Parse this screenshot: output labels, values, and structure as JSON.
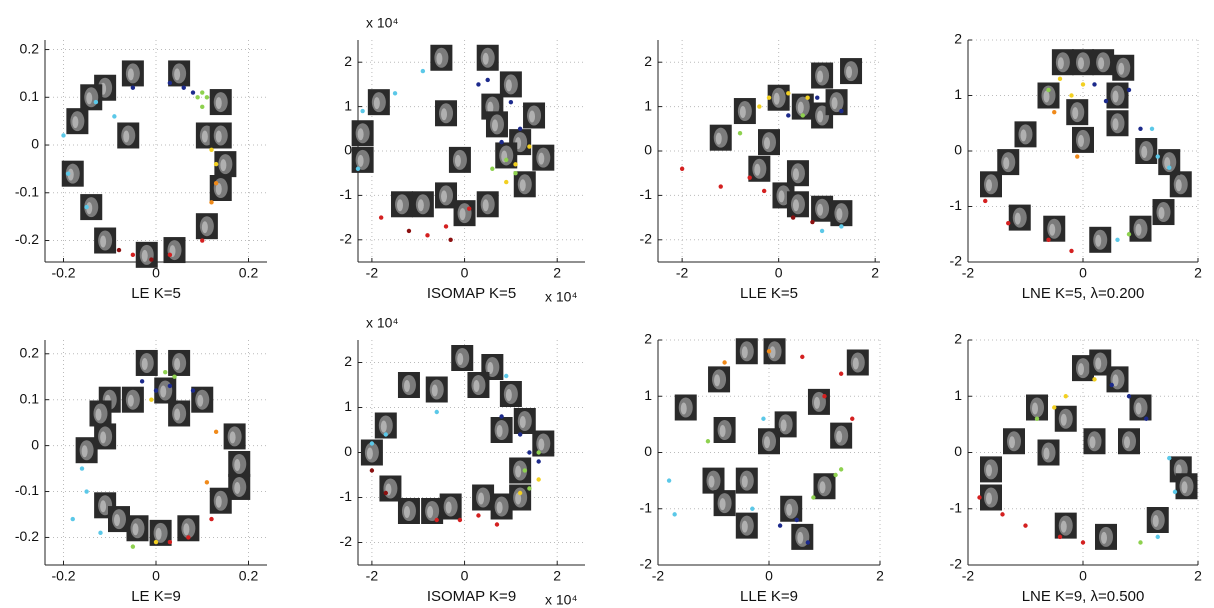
{
  "chart_data": [
    {
      "type": "scatter",
      "xlabel": "LE  K=5",
      "xlim": [
        -0.24,
        0.24
      ],
      "ylim": [
        -0.245,
        0.22
      ],
      "xticks": [
        -0.2,
        0,
        0.2
      ],
      "yticks": [
        -0.2,
        -0.1,
        0,
        0.1,
        0.2
      ],
      "grid": true,
      "series": [
        {
          "color": "#1c2a8c",
          "x": [
            -0.05,
            0.03,
            0.06,
            0.08
          ],
          "y": [
            0.12,
            0.13,
            0.12,
            0.11
          ]
        },
        {
          "color": "#8ed14f",
          "x": [
            0.09,
            0.1,
            0.11,
            0.1
          ],
          "y": [
            0.1,
            0.11,
            0.1,
            0.08
          ]
        },
        {
          "color": "#5bc8e8",
          "x": [
            -0.2,
            -0.13,
            -0.09,
            -0.19,
            -0.15
          ],
          "y": [
            0.02,
            0.09,
            0.06,
            -0.06,
            -0.13
          ]
        },
        {
          "color": "#f2d022",
          "x": [
            0.12,
            0.13
          ],
          "y": [
            -0.01,
            -0.04
          ]
        },
        {
          "color": "#f08a1a",
          "x": [
            0.13,
            0.12
          ],
          "y": [
            -0.08,
            -0.12
          ]
        },
        {
          "color": "#d42020",
          "x": [
            0.1,
            0.03,
            -0.05
          ],
          "y": [
            -0.2,
            -0.23,
            -0.23
          ]
        },
        {
          "color": "#8b1010",
          "x": [
            -0.08,
            -0.01
          ],
          "y": [
            -0.22,
            -0.24
          ]
        }
      ],
      "thumbnails": {
        "x": [
          -0.05,
          0.05,
          -0.11,
          -0.14,
          0.14,
          -0.17,
          -0.06,
          0.11,
          0.14,
          0.15,
          0.14,
          -0.18,
          -0.14,
          -0.11,
          -0.02,
          0.04,
          0.11
        ],
        "y": [
          0.15,
          0.15,
          0.12,
          0.1,
          0.09,
          0.05,
          0.02,
          0.02,
          0.02,
          -0.04,
          -0.09,
          -0.06,
          -0.13,
          -0.2,
          -0.23,
          -0.22,
          -0.17
        ]
      }
    },
    {
      "type": "scatter",
      "xlabel": "ISOMAP  K=5",
      "x_multiplier": "x 10⁴",
      "y_multiplier": "x 10⁴",
      "xlim": [
        -23000,
        26000
      ],
      "ylim": [
        -25000,
        25000
      ],
      "xticks": [
        {
          "value": -20000,
          "label": "-2"
        },
        {
          "value": 0,
          "label": "0"
        },
        {
          "value": 20000,
          "label": "2"
        }
      ],
      "yticks": [
        {
          "value": -20000,
          "label": "-2"
        },
        {
          "value": -10000,
          "label": "-1"
        },
        {
          "value": 0,
          "label": "0"
        },
        {
          "value": 10000,
          "label": "1"
        },
        {
          "value": 20000,
          "label": "2"
        }
      ],
      "grid": true,
      "series": [
        {
          "color": "#1c2a8c",
          "x": [
            5000,
            10000,
            12000,
            8000,
            3000
          ],
          "y": [
            16000,
            11000,
            5000,
            2000,
            15000
          ]
        },
        {
          "color": "#5bc8e8",
          "x": [
            -9000,
            -15000,
            -22000,
            -23000
          ],
          "y": [
            18000,
            13000,
            9000,
            -4000
          ]
        },
        {
          "color": "#8ed14f",
          "x": [
            9000,
            11000,
            6000
          ],
          "y": [
            -2000,
            -5000,
            -4000
          ]
        },
        {
          "color": "#f2d022",
          "x": [
            11000,
            14000,
            9000
          ],
          "y": [
            -3000,
            1000,
            -7000
          ]
        },
        {
          "color": "#d42020",
          "x": [
            -18000,
            -8000,
            -4000,
            1000
          ],
          "y": [
            -15000,
            -19000,
            -17000,
            -13000
          ]
        },
        {
          "color": "#8b1010",
          "x": [
            -3000,
            -12000
          ],
          "y": [
            -20000,
            -18000
          ]
        }
      ],
      "thumbnails": {
        "x": [
          -22000,
          -18500,
          -13500,
          -9000,
          -4000,
          0,
          -5000,
          5000,
          10000,
          -4000,
          6000,
          15000,
          7000,
          12000,
          9000,
          17000,
          -1000,
          13000,
          5000,
          -22000
        ],
        "y": [
          4000,
          11000,
          -12000,
          -12000,
          -10000,
          -14000,
          21000,
          21000,
          15000,
          8500,
          10000,
          8000,
          6000,
          2000,
          -1000,
          -1500,
          -2000,
          -7500,
          -12000,
          -2000
        ]
      }
    },
    {
      "type": "scatter",
      "xlabel": "LLE  K=5",
      "xlim": [
        -2.5,
        2.1
      ],
      "ylim": [
        -2.5,
        2.5
      ],
      "xticks": [
        -2,
        0,
        2
      ],
      "yticks": [
        -2,
        -1,
        0,
        1,
        2
      ],
      "grid": true,
      "series": [
        {
          "color": "#f2d022",
          "x": [
            -0.4,
            -0.2,
            0.2,
            0.6
          ],
          "y": [
            1,
            1.2,
            1.3,
            1.2
          ]
        },
        {
          "color": "#1c2a8c",
          "x": [
            0.2,
            0.8,
            1.3
          ],
          "y": [
            0.8,
            1.2,
            0.9
          ]
        },
        {
          "color": "#d42020",
          "x": [
            -2,
            -1.2,
            -0.6,
            -0.3
          ],
          "y": [
            -0.4,
            -0.8,
            -0.6,
            -0.9
          ]
        },
        {
          "color": "#8b1010",
          "x": [
            0.3,
            0.7
          ],
          "y": [
            -1.5,
            -1.6
          ]
        },
        {
          "color": "#5bc8e8",
          "x": [
            1.3,
            0.9
          ],
          "y": [
            -1.7,
            -1.8
          ]
        },
        {
          "color": "#8ed14f",
          "x": [
            -0.8,
            0.5
          ],
          "y": [
            0.4,
            0.8
          ]
        }
      ],
      "thumbnails": {
        "x": [
          -1.2,
          -0.7,
          -0.2,
          -0.4,
          0,
          0.5,
          0.9,
          1.2,
          1.5,
          0.9,
          0.4,
          0.1,
          0.4,
          0.9,
          1.3
        ],
        "y": [
          0.3,
          0.9,
          0.2,
          -0.4,
          1.2,
          1,
          0.8,
          1.1,
          1.8,
          1.7,
          -0.5,
          -1,
          -1.2,
          -1.3,
          -1.4
        ]
      }
    },
    {
      "type": "scatter",
      "xlabel": "LNE  K=5, λ=0.200",
      "xlim": [
        -2,
        2
      ],
      "ylim": [
        -2,
        2
      ],
      "xticks": [
        -2,
        0,
        2
      ],
      "yticks": [
        -2,
        -1,
        0,
        1,
        2
      ],
      "grid": true,
      "series": [
        {
          "color": "#f2d022",
          "x": [
            -0.4,
            0,
            -0.2
          ],
          "y": [
            1.3,
            1.2,
            1
          ]
        },
        {
          "color": "#1c2a8c",
          "x": [
            0.2,
            0.4,
            0.8,
            1
          ],
          "y": [
            1.2,
            0.9,
            1.1,
            0.4
          ]
        },
        {
          "color": "#5bc8e8",
          "x": [
            1.3,
            1.5,
            1.2,
            0.6
          ],
          "y": [
            -0.1,
            -0.3,
            0.4,
            -1.6
          ]
        },
        {
          "color": "#d42020",
          "x": [
            -1.7,
            -1.3,
            -0.6,
            -0.2
          ],
          "y": [
            -0.9,
            -1.3,
            -1.6,
            -1.8
          ]
        },
        {
          "color": "#8ed14f",
          "x": [
            -0.6,
            0.8
          ],
          "y": [
            1.1,
            -1.5
          ]
        },
        {
          "color": "#f08a1a",
          "x": [
            -0.5,
            -0.1
          ],
          "y": [
            0.7,
            -0.1
          ]
        }
      ],
      "thumbnails": {
        "x": [
          0,
          0.35,
          -0.35,
          0.7,
          -0.6,
          -1,
          -1.3,
          -1.6,
          -1.1,
          -0.5,
          0.3,
          1,
          1.4,
          1.7,
          1.5,
          1.1,
          0.6,
          0,
          -0.1,
          0.6
        ],
        "y": [
          1.6,
          1.6,
          1.6,
          1.5,
          1,
          0.3,
          -0.2,
          -0.6,
          -1.2,
          -1.4,
          -1.6,
          -1.4,
          -1.1,
          -0.6,
          -0.2,
          0,
          0.5,
          0.2,
          0.7,
          1
        ]
      }
    },
    {
      "type": "scatter",
      "xlabel": "LE  K=9",
      "xlim": [
        -0.24,
        0.24
      ],
      "ylim": [
        -0.26,
        0.23
      ],
      "xticks": [
        -0.2,
        0,
        0.2
      ],
      "yticks": [
        -0.2,
        -0.1,
        0,
        0.1,
        0.2
      ],
      "grid": true,
      "series": [
        {
          "color": "#1c2a8c",
          "x": [
            -0.03,
            0,
            0.03,
            0.08
          ],
          "y": [
            0.14,
            0.12,
            0.13,
            0.12
          ]
        },
        {
          "color": "#8ed14f",
          "x": [
            0.02,
            0.04,
            -0.05
          ],
          "y": [
            0.16,
            0.15,
            -0.22
          ]
        },
        {
          "color": "#5bc8e8",
          "x": [
            -0.16,
            -0.15,
            -0.12,
            -0.18
          ],
          "y": [
            -0.05,
            -0.1,
            -0.19,
            -0.16
          ]
        },
        {
          "color": "#f08a1a",
          "x": [
            0.13,
            0.11
          ],
          "y": [
            0.03,
            -0.08
          ]
        },
        {
          "color": "#d42020",
          "x": [
            0.03,
            0.07,
            0.12
          ],
          "y": [
            -0.21,
            -0.2,
            -0.16
          ]
        },
        {
          "color": "#f2d022",
          "x": [
            0,
            -0.01
          ],
          "y": [
            -0.21,
            0.1
          ]
        }
      ],
      "thumbnails": {
        "x": [
          -0.02,
          0.05,
          -0.1,
          -0.05,
          0.02,
          0.1,
          0.05,
          -0.12,
          -0.11,
          -0.15,
          0.17,
          0.18,
          0.18,
          0.14,
          -0.11,
          -0.08,
          -0.04,
          0.01,
          0.07
        ],
        "y": [
          0.18,
          0.18,
          0.1,
          0.1,
          0.12,
          0.1,
          0.07,
          0.07,
          0.02,
          -0.01,
          0.02,
          -0.04,
          -0.09,
          -0.12,
          -0.13,
          -0.16,
          -0.18,
          -0.19,
          -0.18
        ]
      }
    },
    {
      "type": "scatter",
      "xlabel": "ISOMAP  K=9",
      "x_multiplier": "x 10⁴",
      "y_multiplier": "x 10⁴",
      "xlim": [
        -23000,
        26000
      ],
      "ylim": [
        -25000,
        25000
      ],
      "xticks": [
        {
          "value": -20000,
          "label": "-2"
        },
        {
          "value": 0,
          "label": "0"
        },
        {
          "value": 20000,
          "label": "2"
        }
      ],
      "yticks": [
        {
          "value": -20000,
          "label": "-2"
        },
        {
          "value": -10000,
          "label": "-1"
        },
        {
          "value": 0,
          "label": "0"
        },
        {
          "value": 10000,
          "label": "1"
        },
        {
          "value": 20000,
          "label": "2"
        }
      ],
      "grid": true,
      "series": [
        {
          "color": "#1c2a8c",
          "x": [
            8000,
            12000,
            14000,
            16000
          ],
          "y": [
            8000,
            4000,
            0,
            -2000
          ]
        },
        {
          "color": "#5bc8e8",
          "x": [
            -6000,
            9000,
            -20000,
            -17000
          ],
          "y": [
            9000,
            17000,
            2000,
            4000
          ]
        },
        {
          "color": "#8ed14f",
          "x": [
            13000,
            14000,
            16000
          ],
          "y": [
            -4000,
            -8000,
            0
          ]
        },
        {
          "color": "#f2d022",
          "x": [
            16000,
            12000
          ],
          "y": [
            -6000,
            -9000
          ]
        },
        {
          "color": "#d42020",
          "x": [
            -6000,
            -1000,
            3000,
            7000
          ],
          "y": [
            -15000,
            -15000,
            -14000,
            -16000
          ]
        },
        {
          "color": "#8b1010",
          "x": [
            -20000,
            -17000
          ],
          "y": [
            -4000,
            -9000
          ]
        }
      ],
      "thumbnails": {
        "x": [
          -500,
          6000,
          -12000,
          -6000,
          3000,
          10000,
          -17000,
          8000,
          13000,
          -20000,
          17000,
          12000,
          -16000,
          -12000,
          -7000,
          -3000,
          4000,
          8000,
          12000
        ],
        "y": [
          21000,
          19000,
          15000,
          14000,
          15000,
          13000,
          6000,
          5000,
          7000,
          0,
          2000,
          -4000,
          -8000,
          -13000,
          -13000,
          -12000,
          -10000,
          -12000,
          -10000
        ]
      }
    },
    {
      "type": "scatter",
      "xlabel": "LLE  K=9",
      "xlim": [
        -2,
        2
      ],
      "ylim": [
        -2,
        2
      ],
      "xticks": [
        -2,
        0,
        2
      ],
      "yticks": [
        -2,
        -1,
        0,
        1,
        2
      ],
      "grid": true,
      "series": [
        {
          "color": "#d42020",
          "x": [
            0.6,
            1.3,
            1,
            1.5
          ],
          "y": [
            1.7,
            1.4,
            1,
            0.6
          ]
        },
        {
          "color": "#8ed14f",
          "x": [
            -1.1,
            1.3,
            0.8,
            1.2
          ],
          "y": [
            0.2,
            -0.3,
            -0.8,
            -0.4
          ]
        },
        {
          "color": "#5bc8e8",
          "x": [
            -1.8,
            -1.7,
            -0.3,
            -0.1
          ],
          "y": [
            -0.5,
            -1.1,
            -1,
            0.6
          ]
        },
        {
          "color": "#1c2a8c",
          "x": [
            0.2,
            0.5,
            0.7
          ],
          "y": [
            -1.3,
            -1.2,
            -1.6
          ]
        },
        {
          "color": "#f08a1a",
          "x": [
            -0.8,
            0
          ],
          "y": [
            1.6,
            1.8
          ]
        }
      ],
      "thumbnails": {
        "x": [
          -0.4,
          0.1,
          -0.9,
          -1.5,
          -0.8,
          0.3,
          1.6,
          0.9,
          1.3,
          1,
          -0.4,
          -1,
          -0.8,
          0.4,
          -0.4,
          0.6,
          0
        ],
        "y": [
          1.8,
          1.8,
          1.3,
          0.8,
          0.4,
          0.5,
          1.6,
          0.9,
          0.3,
          -0.6,
          -0.5,
          -0.5,
          -0.9,
          -1,
          -1.3,
          -1.5,
          0.2
        ]
      }
    },
    {
      "type": "scatter",
      "xlabel": "LNE  K=9, λ=0.500",
      "xlim": [
        -2,
        2
      ],
      "ylim": [
        -2,
        2
      ],
      "xticks": [
        -2,
        0,
        2
      ],
      "yticks": [
        -2,
        -1,
        0,
        1,
        2
      ],
      "grid": true,
      "series": [
        {
          "color": "#f2d022",
          "x": [
            -0.5,
            -0.3,
            0.2
          ],
          "y": [
            0.8,
            1,
            1.3
          ]
        },
        {
          "color": "#1c2a8c",
          "x": [
            0.5,
            0.8,
            1.1
          ],
          "y": [
            1.2,
            1,
            0.6
          ]
        },
        {
          "color": "#5bc8e8",
          "x": [
            1.5,
            1.6,
            1.3
          ],
          "y": [
            -0.1,
            -0.7,
            -1.5
          ]
        },
        {
          "color": "#d42020",
          "x": [
            -1.8,
            -1.4,
            -1,
            -0.4,
            0
          ],
          "y": [
            -0.8,
            -1.1,
            -1.3,
            -1.5,
            -1.6
          ]
        },
        {
          "color": "#8ed14f",
          "x": [
            -0.8,
            1
          ],
          "y": [
            0.6,
            -1.6
          ]
        }
      ],
      "thumbnails": {
        "x": [
          0,
          0.3,
          0.6,
          -0.8,
          1,
          -0.3,
          0.2,
          0.8,
          -1.2,
          -0.6,
          -1.6,
          -1.6,
          1.7,
          1.8,
          1.3,
          -0.3,
          0.4
        ],
        "y": [
          1.5,
          1.6,
          1.3,
          0.8,
          0.8,
          0.6,
          0.2,
          0.2,
          0.2,
          0,
          -0.3,
          -0.8,
          -0.3,
          -0.6,
          -1.2,
          -1.3,
          -1.5
        ]
      }
    }
  ]
}
